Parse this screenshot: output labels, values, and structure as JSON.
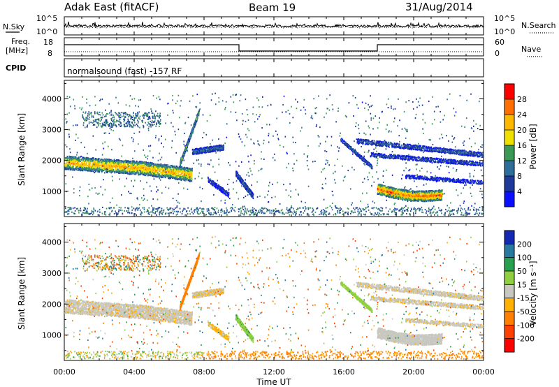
{
  "header": {
    "title": "Adak East (fitACF)",
    "beam": "Beam 19",
    "date": "31/Aug/2014"
  },
  "top_panels": {
    "nsky": {
      "left_label": "N.Sky",
      "left_ticks": [
        "10^5",
        "10^0"
      ],
      "right_ticks": [
        "10^5",
        "10^0"
      ],
      "right_label": "N.Search"
    },
    "freq": {
      "left_label_1": "Freq.",
      "left_label_2": "[MHz]",
      "left_ticks": [
        "18",
        "8"
      ],
      "right_ticks": [
        "60",
        "0"
      ],
      "right_label": "Nave"
    },
    "cpid": {
      "label": "CPID",
      "value": "normalsound (fast) -157 RF"
    }
  },
  "axes": {
    "ylabel": "Slant Range [km]",
    "xlabel": "Time UT",
    "y_ticks": [
      "4000",
      "3000",
      "2000",
      "1000"
    ],
    "x_ticks": [
      "00:00",
      "04:00",
      "08:00",
      "12:00",
      "16:00",
      "20:00",
      "00:00"
    ]
  },
  "colorbars": {
    "power": {
      "label": "Power [dB]",
      "ticks": [
        "28",
        "24",
        "20",
        "16",
        "12",
        "8",
        "4"
      ],
      "colors": [
        "#ff0000",
        "#ff6e00",
        "#ffb800",
        "#f0e000",
        "#3a9a55",
        "#2e6e9a",
        "#1e3a9a",
        "#0a10ff"
      ]
    },
    "velocity": {
      "label": "Velocity [m s⁻¹]",
      "ticks": [
        "200",
        "100",
        "50",
        "15",
        "-15",
        "-50",
        "-100",
        "-200"
      ],
      "colors": [
        "#1428b4",
        "#2878a0",
        "#28a050",
        "#90d040",
        "#c8c8c0",
        "#ffb000",
        "#ff8000",
        "#ff4000",
        "#ff0000"
      ]
    }
  },
  "chart_data": [
    {
      "type": "heatmap",
      "title": "",
      "parameter": "Power [dB]",
      "xlabel": "Time UT",
      "ylabel": "Slant Range [km]",
      "xlim": [
        "00:00",
        "24:00"
      ],
      "ylim": [
        180,
        4600
      ],
      "colorscale_range": [
        0,
        30
      ],
      "features": [
        {
          "t_start": 0.0,
          "t_end": 7.3,
          "range_start": 1950,
          "range_end": 1600,
          "value": 18
        },
        {
          "t_start": 7.3,
          "t_end": 9.0,
          "range_start": 2300,
          "range_end": 2450,
          "value": 10
        },
        {
          "t_start": 6.8,
          "t_end": 7.7,
          "range_start": 1900,
          "range_end": 3600,
          "value": 14
        },
        {
          "t_start": 17.8,
          "t_end": 21.6,
          "range_start": 1150,
          "range_end": 850,
          "value": 22
        },
        {
          "t_start": 16.5,
          "t_end": 24.0,
          "range_start": 2600,
          "range_end": 2200,
          "value": 6
        }
      ]
    },
    {
      "type": "heatmap",
      "title": "",
      "parameter": "Velocity [m s⁻¹]",
      "xlabel": "Time UT",
      "ylabel": "Slant Range [km]",
      "xlim": [
        "00:00",
        "24:00"
      ],
      "ylim": [
        180,
        4600
      ],
      "colorscale_range": [
        -200,
        200
      ],
      "features": [
        {
          "t_start": 0.0,
          "t_end": 7.3,
          "range_start": 1950,
          "range_end": 1600,
          "value": 0
        },
        {
          "t_start": 6.8,
          "t_end": 7.7,
          "range_start": 1900,
          "range_end": 3600,
          "value": -70
        },
        {
          "t_start": 10.0,
          "t_end": 10.8,
          "range_start": 1600,
          "range_end": 900,
          "value": 40
        },
        {
          "t_start": 17.8,
          "t_end": 21.6,
          "range_start": 1150,
          "range_end": 850,
          "value": 0
        },
        {
          "t_start": 8.0,
          "t_end": 24.0,
          "range_start": 300,
          "range_end": 300,
          "value": -60
        }
      ]
    }
  ]
}
